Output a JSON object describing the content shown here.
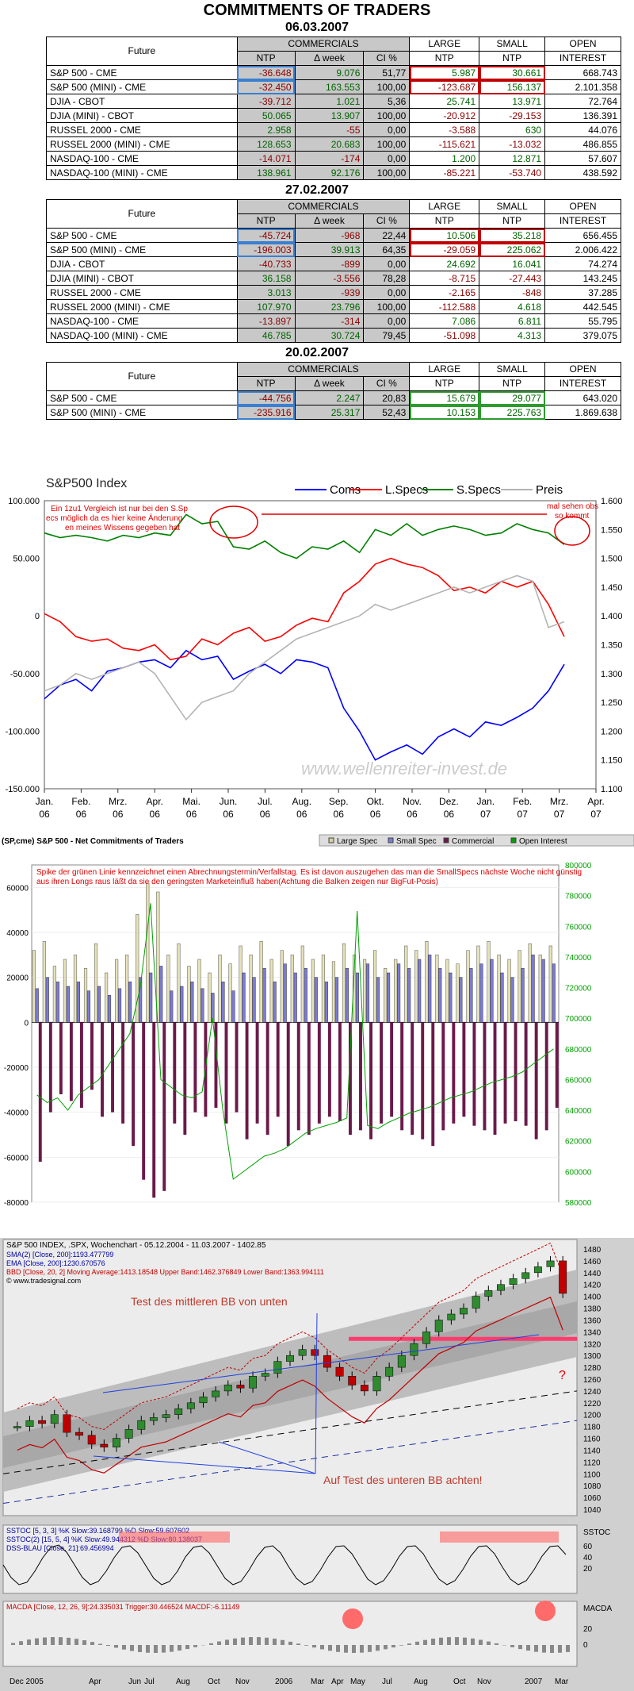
{
  "page_title": "COMMITMENTS OF TRADERS",
  "colors": {
    "neg": "#8b0000",
    "pos": "#006400",
    "coms": "#0000ff",
    "lspecs": "#ff0000",
    "sspecs": "#008000",
    "preis": "#b4b4b4",
    "purple": "#6a1a4a"
  },
  "table_headers": {
    "future": "Future",
    "commercials": "COMMERCIALS",
    "ntp": "NTP",
    "dweek": "Δ week",
    "ci": "CI %",
    "large": "LARGE",
    "small": "SMALL",
    "ntp2": "NTP",
    "ntp3": "NTP",
    "open": "OPEN",
    "interest": "INTEREST"
  },
  "tables": [
    {
      "date": "06.03.2007",
      "rows": [
        {
          "future": "S&P 500 - CME",
          "ntp": "-36.648",
          "dweek": "9.076",
          "ci": "51,77",
          "large": "5.987",
          "small": "30.661",
          "oi": "668.743"
        },
        {
          "future": "S&P 500 (MINI) - CME",
          "ntp": "-32.450",
          "dweek": "163.553",
          "ci": "100,00",
          "large": "-123.687",
          "small": "156.137",
          "oi": "2.101.358"
        },
        {
          "future": "DJIA - CBOT",
          "ntp": "-39.712",
          "dweek": "1.021",
          "ci": "5,36",
          "large": "25.741",
          "small": "13.971",
          "oi": "72.764"
        },
        {
          "future": "DJIA (MINI) - CBOT",
          "ntp": "50.065",
          "dweek": "13.907",
          "ci": "100,00",
          "large": "-20.912",
          "small": "-29.153",
          "oi": "136.391"
        },
        {
          "future": "RUSSEL 2000 - CME",
          "ntp": "2.958",
          "dweek": "-55",
          "ci": "0,00",
          "large": "-3.588",
          "small": "630",
          "oi": "44.076"
        },
        {
          "future": "RUSSEL 2000 (MINI) - CME",
          "ntp": "128.653",
          "dweek": "20.683",
          "ci": "100,00",
          "large": "-115.621",
          "small": "-13.032",
          "oi": "486.855"
        },
        {
          "future": "NASDAQ-100 - CME",
          "ntp": "-14.071",
          "dweek": "-174",
          "ci": "0,00",
          "large": "1.200",
          "small": "12.871",
          "oi": "57.607"
        },
        {
          "future": "NASDAQ-100 (MINI) - CME",
          "ntp": "138.961",
          "dweek": "92.176",
          "ci": "100,00",
          "large": "-85.221",
          "small": "-53.740",
          "oi": "438.592"
        }
      ]
    },
    {
      "date": "27.02.2007",
      "rows": [
        {
          "future": "S&P 500 - CME",
          "ntp": "-45.724",
          "dweek": "-968",
          "ci": "22,44",
          "large": "10.506",
          "small": "35.218",
          "oi": "656.455"
        },
        {
          "future": "S&P 500 (MINI) - CME",
          "ntp": "-196.003",
          "dweek": "39.913",
          "ci": "64,35",
          "large": "-29.059",
          "small": "225.062",
          "oi": "2.006.422"
        },
        {
          "future": "DJIA - CBOT",
          "ntp": "-40.733",
          "dweek": "-899",
          "ci": "0,00",
          "large": "24.692",
          "small": "16.041",
          "oi": "74.274"
        },
        {
          "future": "DJIA (MINI) - CBOT",
          "ntp": "36.158",
          "dweek": "-3.556",
          "ci": "78,28",
          "large": "-8.715",
          "small": "-27.443",
          "oi": "143.245"
        },
        {
          "future": "RUSSEL 2000 - CME",
          "ntp": "3.013",
          "dweek": "-939",
          "ci": "0,00",
          "large": "-2.165",
          "small": "-848",
          "oi": "37.285"
        },
        {
          "future": "RUSSEL 2000 (MINI) - CME",
          "ntp": "107.970",
          "dweek": "23.796",
          "ci": "100,00",
          "large": "-112.588",
          "small": "4.618",
          "oi": "442.545"
        },
        {
          "future": "NASDAQ-100 - CME",
          "ntp": "-13.897",
          "dweek": "-314",
          "ci": "0,00",
          "large": "7.086",
          "small": "6.811",
          "oi": "55.795"
        },
        {
          "future": "NASDAQ-100 (MINI) - CME",
          "ntp": "46.785",
          "dweek": "30.724",
          "ci": "79,45",
          "large": "-51.098",
          "small": "4.313",
          "oi": "379.075"
        }
      ]
    },
    {
      "date": "20.02.2007",
      "rows": [
        {
          "future": "S&P 500 - CME",
          "ntp": "-44.756",
          "dweek": "2.247",
          "ci": "20,83",
          "large": "15.679",
          "small": "29.077",
          "oi": "643.020"
        },
        {
          "future": "S&P 500 (MINI) - CME",
          "ntp": "-235.916",
          "dweek": "25.317",
          "ci": "52,43",
          "large": "10.153",
          "small": "225.763",
          "oi": "1.869.638"
        }
      ]
    }
  ],
  "chart_data": [
    {
      "type": "line",
      "title": "S&P500 Index",
      "legend": [
        "Coms",
        "L.Specs",
        "S.Specs",
        "Preis"
      ],
      "ylim": [
        -150000,
        100000
      ],
      "y2lim": [
        1.1,
        1.6
      ],
      "yticks": [
        "100.000",
        "50.000",
        "0",
        "-50.000",
        "-100.000",
        "-150.000"
      ],
      "y2ticks": [
        "1.600",
        "1.550",
        "1.500",
        "1.450",
        "1.400",
        "1.350",
        "1.300",
        "1.250",
        "1.200",
        "1.150",
        "1.100"
      ],
      "xmonths": [
        "Jan.",
        "Feb.",
        "Mrz.",
        "Apr.",
        "Mai.",
        "Jun.",
        "Jul.",
        "Aug.",
        "Sep.",
        "Okt.",
        "Nov.",
        "Dez.",
        "Jan.",
        "Feb.",
        "Mrz.",
        "Apr."
      ],
      "xyears": [
        "06",
        "06",
        "06",
        "06",
        "06",
        "06",
        "06",
        "06",
        "06",
        "06",
        "06",
        "06",
        "07",
        "07",
        "07",
        "07"
      ],
      "annotations": [
        "Ein 1zu1 Vergleich ist nur bei den S.Specs möglich da es hier keine Änderungen meines Wissens gegeben hat",
        "mal sehen obs so kommt",
        "www.wellenreiter-invest.de"
      ],
      "series": [
        {
          "name": "Coms",
          "values": [
            -72000,
            -60000,
            -55000,
            -65000,
            -48000,
            -45000,
            -40000,
            -38000,
            -45000,
            -30000,
            -38000,
            -35000,
            -55000,
            -48000,
            -42000,
            -50000,
            -38000,
            -40000,
            -45000,
            -80000,
            -100000,
            -125000,
            -118000,
            -112000,
            -120000,
            -105000,
            -98000,
            -105000,
            -92000,
            -95000,
            -88000,
            -80000,
            -65000,
            -42000
          ]
        },
        {
          "name": "L.Specs",
          "values": [
            2000,
            -5000,
            -18000,
            -22000,
            -20000,
            -28000,
            -30000,
            -25000,
            -38000,
            -35000,
            -20000,
            -25000,
            -15000,
            -10000,
            -22000,
            -18000,
            -8000,
            -2000,
            -5000,
            20000,
            30000,
            45000,
            50000,
            45000,
            42000,
            35000,
            22000,
            25000,
            20000,
            30000,
            25000,
            30000,
            10000,
            -18000
          ]
        },
        {
          "name": "S.Specs",
          "values": [
            72000,
            68000,
            70000,
            68000,
            65000,
            70000,
            68000,
            72000,
            70000,
            88000,
            80000,
            82000,
            60000,
            58000,
            65000,
            55000,
            50000,
            60000,
            58000,
            65000,
            55000,
            75000,
            70000,
            80000,
            70000,
            75000,
            78000,
            75000,
            70000,
            72000,
            80000,
            75000,
            72000,
            62000
          ]
        },
        {
          "name": "Preis",
          "values": [
            1.27,
            1.28,
            1.3,
            1.29,
            1.3,
            1.31,
            1.32,
            1.3,
            1.26,
            1.22,
            1.25,
            1.26,
            1.27,
            1.3,
            1.32,
            1.34,
            1.36,
            1.37,
            1.38,
            1.39,
            1.4,
            1.42,
            1.41,
            1.42,
            1.43,
            1.44,
            1.45,
            1.44,
            1.45,
            1.46,
            1.47,
            1.46,
            1.38,
            1.39
          ]
        }
      ]
    },
    {
      "type": "bar",
      "title": "(SP,cme) S&P 500 - Net Commitments of Traders",
      "legend": [
        "Large Spec",
        "Small Spec",
        "Commercial",
        "Open Interest"
      ],
      "ylim": [
        -80000,
        70000
      ],
      "y2lim": [
        580000,
        800000
      ],
      "yticks": [
        "60000",
        "40000",
        "20000",
        "0",
        "-20000",
        "-40000",
        "-60000",
        "-80000"
      ],
      "y2ticks": [
        "800000",
        "780000",
        "760000",
        "740000",
        "720000",
        "700000",
        "680000",
        "660000",
        "640000",
        "620000",
        "600000",
        "580000"
      ],
      "annotation": "Spike der grünen Linie kennzeichnet einen Abrechnungstermin/Verfallstag. Es ist davon auszugehen das man die SmallSpecs nächste Woche nicht günstig aus ihren Longs raus läßt da sie den geringsten Marketeinfluß haben(Achtung die Balken zeigen nur BigFut-Posis)",
      "series": [
        {
          "name": "Large Spec",
          "values": [
            32000,
            36000,
            25000,
            28000,
            30000,
            24000,
            35000,
            22000,
            28000,
            30000,
            48000,
            62000,
            58000,
            30000,
            35000,
            25000,
            28000,
            22000,
            30000,
            26000,
            34000,
            30000,
            36000,
            28000,
            32000,
            30000,
            34000,
            28000,
            30000,
            27000,
            35000,
            30000,
            28000,
            32000,
            24000,
            28000,
            34000,
            32000,
            36000,
            30000,
            28000,
            26000,
            32000,
            34000,
            36000,
            30000,
            28000,
            32000,
            35000,
            30000,
            34000
          ]
        },
        {
          "name": "Small Spec",
          "values": [
            15000,
            20000,
            18000,
            16000,
            18000,
            14000,
            16000,
            12000,
            15000,
            18000,
            20000,
            22000,
            25000,
            14000,
            16000,
            18000,
            15000,
            13000,
            18000,
            14000,
            22000,
            20000,
            24000,
            18000,
            26000,
            22000,
            24000,
            20000,
            18000,
            20000,
            24000,
            22000,
            26000,
            20000,
            22000,
            26000,
            24000,
            28000,
            30000,
            24000,
            22000,
            20000,
            24000,
            26000,
            28000,
            22000,
            20000,
            24000,
            30000,
            28000,
            26000
          ]
        },
        {
          "name": "Commercial",
          "values": [
            -62000,
            -40000,
            -32000,
            -35000,
            -38000,
            -30000,
            -42000,
            -40000,
            -45000,
            -55000,
            -70000,
            -78000,
            -75000,
            -45000,
            -50000,
            -40000,
            -42000,
            -38000,
            -45000,
            -40000,
            -52000,
            -45000,
            -50000,
            -42000,
            -55000,
            -48000,
            -50000,
            -45000,
            -42000,
            -44000,
            -50000,
            -48000,
            -52000,
            -45000,
            -42000,
            -48000,
            -50000,
            -52000,
            -55000,
            -48000,
            -45000,
            -42000,
            -46000,
            -48000,
            -50000,
            -45000,
            -44000,
            -46000,
            -52000,
            -48000,
            -38000
          ]
        },
        {
          "name": "Open Interest",
          "values": [
            650000,
            645000,
            648000,
            640000,
            650000,
            655000,
            660000,
            670000,
            680000,
            690000,
            720000,
            775000,
            660000,
            655000,
            650000,
            648000,
            652000,
            700000,
            640000,
            595000,
            600000,
            605000,
            610000,
            612000,
            615000,
            620000,
            625000,
            628000,
            630000,
            632000,
            635000,
            770000,
            630000,
            628000,
            632000,
            635000,
            638000,
            640000,
            642000,
            645000,
            648000,
            650000,
            652000,
            655000,
            658000,
            660000,
            662000,
            665000,
            670000,
            675000,
            680000
          ]
        }
      ]
    },
    {
      "type": "line",
      "title": "S&P 500 INDEX, .SPX, Wochenchart - 05.12.2004 - 11.03.2007 - 1402.85",
      "legend_lines": [
        "SMA(2) [Close, 200]:1193.477799",
        "EMA [Close, 200]:1230.670576",
        "BBD [Close, 20, 2] Moving Average:1413.18548 Upper Band:1462.376849 Lower Band:1363.994111"
      ],
      "copyright": "© www.tradesignal.com",
      "annotations": [
        "Test des mittleren BB von unten",
        "Auf Test des unteren BB achten!",
        "?"
      ],
      "ylim": [
        1040,
        1480
      ],
      "yticks": [
        "1480",
        "1460",
        "1440",
        "1420",
        "1400",
        "1380",
        "1360",
        "1340",
        "1320",
        "1300",
        "1280",
        "1260",
        "1240",
        "1220",
        "1200",
        "1180",
        "1160",
        "1140",
        "1120",
        "1100",
        "1080",
        "1060",
        "1040"
      ],
      "xlabels": [
        "Dec 2005",
        "Apr",
        "Jun",
        "Jul",
        "Aug",
        "Oct",
        "Nov",
        "2006",
        "Mar",
        "Apr",
        "May",
        "Jul",
        "Aug",
        "Oct",
        "Nov",
        "2007",
        "Mar"
      ],
      "series": [
        {
          "name": "Close",
          "values": [
            1180,
            1190,
            1185,
            1200,
            1170,
            1165,
            1150,
            1145,
            1160,
            1175,
            1190,
            1195,
            1200,
            1210,
            1220,
            1230,
            1240,
            1250,
            1245,
            1265,
            1270,
            1290,
            1300,
            1310,
            1300,
            1280,
            1265,
            1250,
            1240,
            1265,
            1280,
            1300,
            1320,
            1340,
            1360,
            1370,
            1380,
            1400,
            1410,
            1420,
            1430,
            1440,
            1450,
            1460,
            1405
          ]
        }
      ]
    },
    {
      "type": "line",
      "title": "SSTOC",
      "legend_lines": [
        "SSTOC [5, 3, 3] %K Slow:39.168799 %D Slow:59.607602",
        "SSTOC(2) [15, 5, 4] %K Slow:49.944312 %D Slow:80.138037",
        "DSS-BLAU [Close, 21]:69.456994"
      ],
      "ylim": [
        0,
        100
      ],
      "yticks": [
        "60",
        "40",
        "20"
      ]
    },
    {
      "type": "line",
      "title": "MACDA",
      "legend_lines": [
        "MACDA [Close, 12, 26, 9]:24.335031 Trigger:30.446524 MACDF:-6.11149"
      ],
      "yticks": [
        "20",
        "0"
      ]
    }
  ]
}
